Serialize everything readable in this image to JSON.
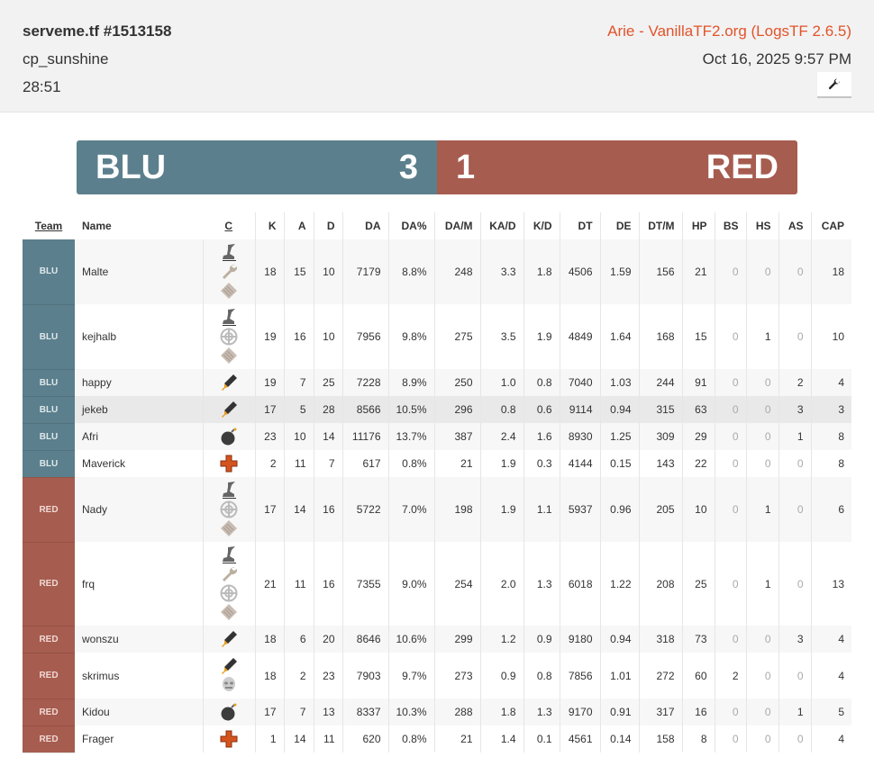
{
  "header": {
    "title": "serveme.tf #1513158",
    "map": "cp_sunshine",
    "duration": "28:51",
    "uploader": "Arie - VanillaTF2.org (LogsTF 2.6.5)",
    "date": "Oct 16, 2025 9:57 PM",
    "tools_icon": "wrench-icon"
  },
  "score": {
    "blu_label": "BLU",
    "blu_score": "3",
    "red_score": "1",
    "red_label": "RED",
    "blu_color": "#5b7f8c",
    "red_color": "#a65c4f"
  },
  "table": {
    "columns": [
      "Team",
      "Name",
      "C",
      "K",
      "A",
      "D",
      "DA",
      "DA%",
      "DA/M",
      "KA/D",
      "K/D",
      "DT",
      "DE",
      "DT/M",
      "HP",
      "BS",
      "HS",
      "AS",
      "CAP"
    ],
    "rows": [
      {
        "team": "BLU",
        "name": "Malte",
        "classes": [
          "boot",
          "wrench",
          "ammo"
        ],
        "stats": [
          "18",
          "15",
          "10",
          "7179",
          "8.8%",
          "248",
          "3.3",
          "1.8",
          "4506",
          "1.59",
          "156",
          "21",
          "0",
          "0",
          "0",
          "18"
        ]
      },
      {
        "team": "BLU",
        "name": "kejhalb",
        "classes": [
          "boot",
          "wheel",
          "ammo"
        ],
        "stats": [
          "19",
          "16",
          "10",
          "7956",
          "9.8%",
          "275",
          "3.5",
          "1.9",
          "4849",
          "1.64",
          "168",
          "15",
          "0",
          "1",
          "0",
          "10"
        ]
      },
      {
        "team": "BLU",
        "name": "happy",
        "classes": [
          "rocket"
        ],
        "stats": [
          "19",
          "7",
          "25",
          "7228",
          "8.9%",
          "250",
          "1.0",
          "0.8",
          "7040",
          "1.03",
          "244",
          "91",
          "0",
          "0",
          "2",
          "4"
        ]
      },
      {
        "team": "BLU",
        "name": "jekeb",
        "classes": [
          "rocket"
        ],
        "stats": [
          "17",
          "5",
          "28",
          "8566",
          "10.5%",
          "296",
          "0.8",
          "0.6",
          "9114",
          "0.94",
          "315",
          "63",
          "0",
          "0",
          "3",
          "3"
        ]
      },
      {
        "team": "BLU",
        "name": "Afri",
        "classes": [
          "bomb"
        ],
        "stats": [
          "23",
          "10",
          "14",
          "11176",
          "13.7%",
          "387",
          "2.4",
          "1.6",
          "8930",
          "1.25",
          "309",
          "29",
          "0",
          "0",
          "1",
          "8"
        ]
      },
      {
        "team": "BLU",
        "name": "Maverick",
        "classes": [
          "cross"
        ],
        "stats": [
          "2",
          "11",
          "7",
          "617",
          "0.8%",
          "21",
          "1.9",
          "0.3",
          "4144",
          "0.15",
          "143",
          "22",
          "0",
          "0",
          "0",
          "8"
        ]
      },
      {
        "team": "RED",
        "name": "Nady",
        "classes": [
          "boot",
          "wheel",
          "ammo"
        ],
        "stats": [
          "17",
          "14",
          "16",
          "5722",
          "7.0%",
          "198",
          "1.9",
          "1.1",
          "5937",
          "0.96",
          "205",
          "10",
          "0",
          "1",
          "0",
          "6"
        ]
      },
      {
        "team": "RED",
        "name": "frq",
        "classes": [
          "boot",
          "wrench",
          "wheel",
          "ammo"
        ],
        "stats": [
          "21",
          "11",
          "16",
          "7355",
          "9.0%",
          "254",
          "2.0",
          "1.3",
          "6018",
          "1.22",
          "208",
          "25",
          "0",
          "1",
          "0",
          "13"
        ]
      },
      {
        "team": "RED",
        "name": "wonszu",
        "classes": [
          "rocket"
        ],
        "stats": [
          "18",
          "6",
          "20",
          "8646",
          "10.6%",
          "299",
          "1.2",
          "0.9",
          "9180",
          "0.94",
          "318",
          "73",
          "0",
          "0",
          "3",
          "4"
        ]
      },
      {
        "team": "RED",
        "name": "skrimus",
        "classes": [
          "rocket",
          "mask"
        ],
        "stats": [
          "18",
          "2",
          "23",
          "7903",
          "9.7%",
          "273",
          "0.9",
          "0.8",
          "7856",
          "1.01",
          "272",
          "60",
          "2",
          "0",
          "0",
          "4"
        ]
      },
      {
        "team": "RED",
        "name": "Kidou",
        "classes": [
          "bomb"
        ],
        "stats": [
          "17",
          "7",
          "13",
          "8337",
          "10.3%",
          "288",
          "1.8",
          "1.3",
          "9170",
          "0.91",
          "317",
          "16",
          "0",
          "0",
          "1",
          "5"
        ]
      },
      {
        "team": "RED",
        "name": "Frager",
        "classes": [
          "cross"
        ],
        "stats": [
          "1",
          "14",
          "11",
          "620",
          "0.8%",
          "21",
          "1.4",
          "0.1",
          "4561",
          "0.14",
          "158",
          "8",
          "0",
          "0",
          "0",
          "4"
        ]
      }
    ]
  }
}
